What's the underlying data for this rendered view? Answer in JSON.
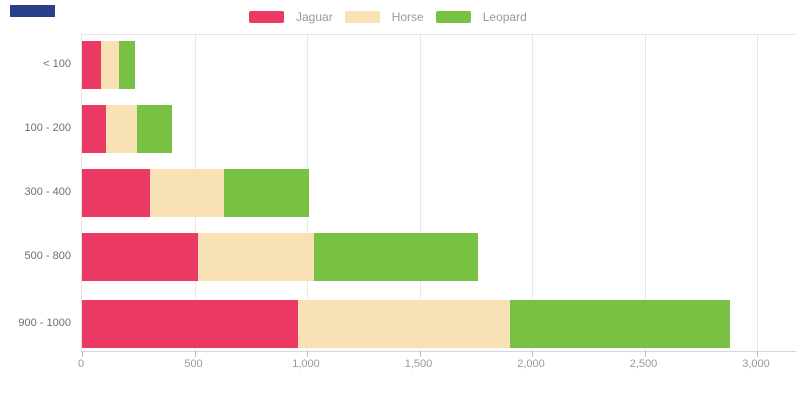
{
  "ui": {
    "corner_block_color": "#2a3f8c",
    "background_color": "#ffffff",
    "gridline_color": "#e9e9e9",
    "axis_tick_color": "#bdbdbd",
    "x_label_color": "#999999",
    "y_label_color": "#6e6e6e",
    "legend_label_color": "#999999"
  },
  "chart_data": {
    "type": "bar",
    "orientation": "horizontal",
    "stacked": true,
    "title": "",
    "xlabel": "",
    "ylabel": "",
    "grid": true,
    "legend_position": "top",
    "categories": [
      "< 100",
      "100 - 200",
      "300 - 400",
      "500 - 800",
      "900 - 1000"
    ],
    "series": [
      {
        "name": "Jaguar",
        "color": "#ea3a63",
        "values": [
          85,
          105,
          300,
          515,
          960
        ]
      },
      {
        "name": "Horse",
        "color": "#f7e1b5",
        "values": [
          80,
          140,
          330,
          515,
          940
        ]
      },
      {
        "name": "Leopard",
        "color": "#79c143",
        "values": [
          70,
          155,
          380,
          730,
          980
        ]
      }
    ],
    "totals": [
      235,
      400,
      1010,
      1760,
      2880
    ],
    "xlim": [
      0,
      3000
    ],
    "x_tick_values": [
      0,
      500,
      1000,
      1500,
      2000,
      2500,
      3000
    ],
    "x_tick_labels": [
      "0",
      "500",
      "1,000",
      "1,500",
      "2,000",
      "2,500",
      "3,000"
    ]
  }
}
